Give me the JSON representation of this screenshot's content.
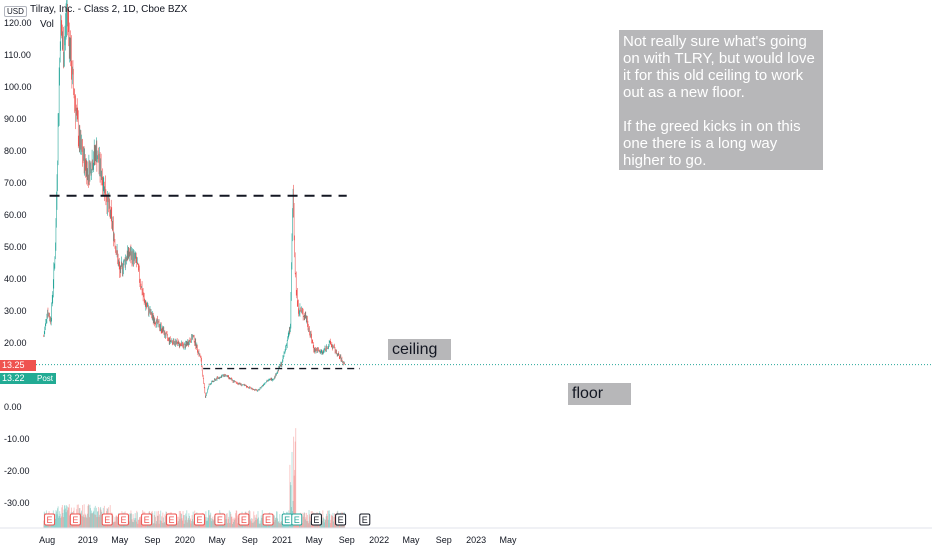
{
  "header": {
    "currency": "USD",
    "symbol_title": "Tilray, Inc. - Class 2, 1D, Cboe BZX",
    "volume_label": "Vol"
  },
  "price_axis": {
    "ticks": [
      "120.00",
      "110.00",
      "100.00",
      "90.00",
      "80.00",
      "70.00",
      "60.00",
      "50.00",
      "40.00",
      "30.00",
      "20.00",
      "0.00",
      "-10.00",
      "-20.00",
      "-30.00"
    ],
    "last_price": "13.25",
    "post_price": "13.22",
    "post_label": "Post"
  },
  "time_axis": {
    "ticks": [
      "Aug",
      "2019",
      "May",
      "Sep",
      "2020",
      "May",
      "Sep",
      "2021",
      "May",
      "Sep",
      "2022",
      "May",
      "Sep",
      "2023",
      "May"
    ]
  },
  "annotations": {
    "note_line1": "Not really sure what's going on with TLRY, but would love it for this old ceiling to work out as a new floor.",
    "note_line2": "If the greed kicks in on this one there is a long way higher to go.",
    "ceiling_label": "ceiling",
    "floor_label": "floor",
    "earnings_marker": "E"
  },
  "colors": {
    "up": "#26a69a",
    "down": "#ef5350",
    "line": "#131722",
    "note_bg": "#b7b7b9"
  },
  "chart_data": {
    "type": "line",
    "title": "Tilray, Inc. - Class 2, 1D, Cboe BZX",
    "xlabel": "",
    "ylabel": "",
    "ylim": [
      -35,
      123
    ],
    "x": [
      "2018-07-19",
      "2018-08-01",
      "2018-08-15",
      "2018-09-01",
      "2018-09-20",
      "2018-10-01",
      "2018-10-15",
      "2018-11-01",
      "2018-12-01",
      "2019-01-01",
      "2019-02-01",
      "2019-03-01",
      "2019-04-01",
      "2019-05-01",
      "2019-06-01",
      "2019-07-01",
      "2019-08-01",
      "2019-09-01",
      "2019-10-01",
      "2019-11-01",
      "2019-12-01",
      "2020-01-01",
      "2020-02-01",
      "2020-03-01",
      "2020-03-18",
      "2020-04-01",
      "2020-05-01",
      "2020-06-01",
      "2020-07-01",
      "2020-08-01",
      "2020-09-01",
      "2020-10-01",
      "2020-11-01",
      "2020-12-01",
      "2021-01-01",
      "2021-02-01",
      "2021-02-10",
      "2021-02-20",
      "2021-03-01",
      "2021-04-01",
      "2021-05-01",
      "2021-06-01",
      "2021-07-01",
      "2021-08-01",
      "2021-08-25"
    ],
    "series": [
      {
        "values": [
          22,
          30,
          27,
          50,
          120,
          110,
          125,
          105,
          82,
          73,
          80,
          70,
          58,
          42,
          48,
          46,
          33,
          28,
          25,
          21,
          20,
          19,
          22,
          15,
          3,
          7,
          9,
          10,
          8,
          7,
          6,
          5,
          8,
          9,
          14,
          25,
          67,
          40,
          31,
          28,
          18,
          17,
          20,
          16,
          13.25
        ]
      }
    ],
    "levels": [
      {
        "label": "ceiling",
        "value": 66
      },
      {
        "label": "floor",
        "value": 12
      }
    ],
    "earnings_markers": [
      "2018-08-10",
      "2018-11-15",
      "2019-03-15",
      "2019-05-15",
      "2019-08-10",
      "2019-11-12",
      "2020-02-25",
      "2020-05-12",
      "2020-08-10",
      "2020-11-09",
      "2021-01-20",
      "2021-02-25",
      "2021-05-10",
      "2021-08-09",
      "2021-11-08"
    ]
  }
}
